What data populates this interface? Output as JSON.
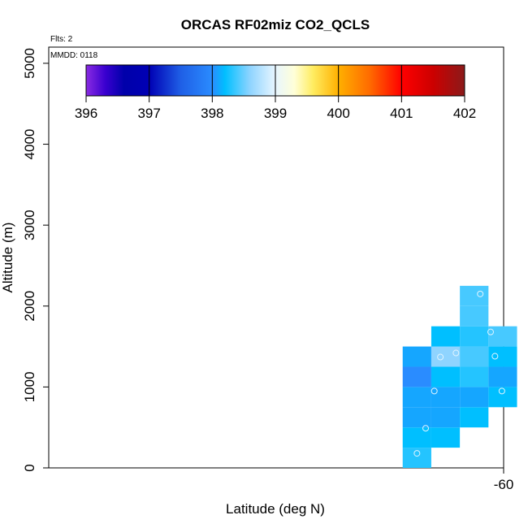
{
  "chart_data": {
    "type": "heatmap",
    "title": "ORCAS RF02miz CO2_QCLS",
    "annotations": {
      "flights": "Flts: 2",
      "mmdd": "MMDD: 0118"
    },
    "xlabel": "Latitude (deg N)",
    "ylabel": "Altitude (m)",
    "xlim": [
      -65.25,
      -60
    ],
    "ylim": [
      0,
      5200
    ],
    "x_ticks": [
      -60
    ],
    "x_tick_labels": [
      "-60"
    ],
    "y_ticks": [
      0,
      1000,
      2000,
      3000,
      4000,
      5000
    ],
    "y_tick_labels": [
      "0",
      "1000",
      "2000",
      "3000",
      "4000",
      "5000"
    ],
    "grid": false,
    "colorbar": {
      "min": 396,
      "max": 402,
      "ticks": [
        396,
        397,
        398,
        399,
        400,
        401,
        402
      ],
      "tick_labels": [
        "396",
        "397",
        "398",
        "399",
        "400",
        "401",
        "402"
      ],
      "stops": [
        {
          "v": 396.0,
          "c": "#8a2be2"
        },
        {
          "v": 396.3,
          "c": "#3a00d0"
        },
        {
          "v": 396.6,
          "c": "#0000aa"
        },
        {
          "v": 397.0,
          "c": "#0000b4"
        },
        {
          "v": 397.5,
          "c": "#1f5fe6"
        },
        {
          "v": 398.0,
          "c": "#2a8cff"
        },
        {
          "v": 398.2,
          "c": "#00bfff"
        },
        {
          "v": 398.6,
          "c": "#8fd4ff"
        },
        {
          "v": 399.0,
          "c": "#e8f6ff"
        },
        {
          "v": 399.3,
          "c": "#ffffd8"
        },
        {
          "v": 399.6,
          "c": "#ffec60"
        },
        {
          "v": 400.0,
          "c": "#ffb000"
        },
        {
          "v": 400.5,
          "c": "#ff6a00"
        },
        {
          "v": 401.0,
          "c": "#ff0000"
        },
        {
          "v": 401.5,
          "c": "#cc0000"
        },
        {
          "v": 402.0,
          "c": "#8b1a1a"
        }
      ]
    },
    "cell_width_deg": 0.33,
    "cell_height_m": 250,
    "cells": [
      {
        "lat": -61.0,
        "alt": 0,
        "value": 398.3
      },
      {
        "lat": -61.0,
        "alt": 250,
        "value": 398.2
      },
      {
        "lat": -61.0,
        "alt": 500,
        "value": 398.1
      },
      {
        "lat": -61.0,
        "alt": 750,
        "value": 398.1
      },
      {
        "lat": -61.0,
        "alt": 1000,
        "value": 398.0
      },
      {
        "lat": -61.0,
        "alt": 1250,
        "value": 398.1
      },
      {
        "lat": -60.67,
        "alt": 250,
        "value": 398.2
      },
      {
        "lat": -60.67,
        "alt": 500,
        "value": 398.1
      },
      {
        "lat": -60.67,
        "alt": 750,
        "value": 398.1
      },
      {
        "lat": -60.67,
        "alt": 1000,
        "value": 398.2
      },
      {
        "lat": -60.67,
        "alt": 1250,
        "value": 398.6
      },
      {
        "lat": -60.67,
        "alt": 1500,
        "value": 398.2
      },
      {
        "lat": -60.34,
        "alt": 500,
        "value": 398.2
      },
      {
        "lat": -60.34,
        "alt": 750,
        "value": 398.1
      },
      {
        "lat": -60.34,
        "alt": 1000,
        "value": 398.3
      },
      {
        "lat": -60.34,
        "alt": 1250,
        "value": 398.4
      },
      {
        "lat": -60.34,
        "alt": 1500,
        "value": 398.3
      },
      {
        "lat": -60.34,
        "alt": 1750,
        "value": 398.4
      },
      {
        "lat": -60.34,
        "alt": 2000,
        "value": 398.4
      },
      {
        "lat": -60.01,
        "alt": 750,
        "value": 398.2
      },
      {
        "lat": -60.01,
        "alt": 1000,
        "value": 398.1
      },
      {
        "lat": -60.01,
        "alt": 1250,
        "value": 398.2
      },
      {
        "lat": -60.01,
        "alt": 1500,
        "value": 398.4
      }
    ],
    "points": [
      {
        "lat": -61.0,
        "alt": 180
      },
      {
        "lat": -60.9,
        "alt": 490
      },
      {
        "lat": -60.8,
        "alt": 950
      },
      {
        "lat": -60.73,
        "alt": 1370
      },
      {
        "lat": -60.55,
        "alt": 1420
      },
      {
        "lat": -60.27,
        "alt": 2150
      },
      {
        "lat": -60.15,
        "alt": 1680
      },
      {
        "lat": -60.1,
        "alt": 1380
      },
      {
        "lat": -60.02,
        "alt": 950
      }
    ],
    "point_color": "#e0f4ff"
  }
}
